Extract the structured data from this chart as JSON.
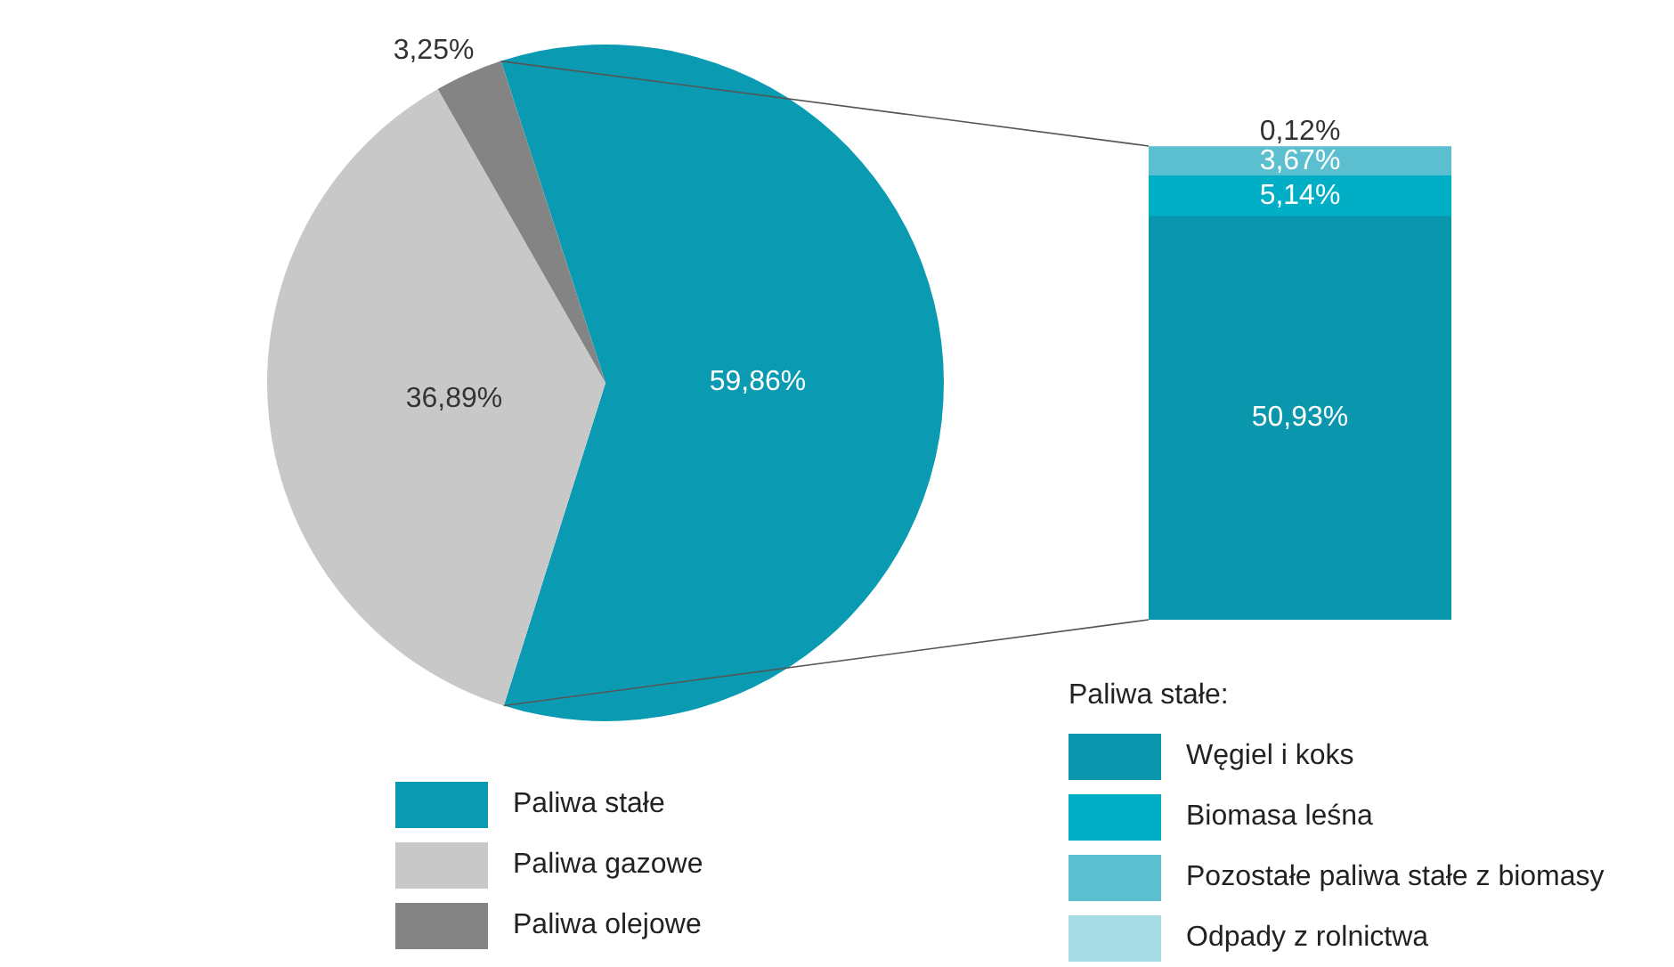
{
  "chart_data": [
    {
      "type": "pie",
      "categories": [
        "Paliwa stałe",
        "Paliwa gazowe",
        "Paliwa olejowe"
      ],
      "values": [
        59.86,
        36.89,
        3.25
      ],
      "colors": [
        "#0a9bb3",
        "#c8c8c8",
        "#848484"
      ],
      "value_labels": [
        "59,86%",
        "36,89%",
        "3,25%"
      ],
      "legend": "bottom"
    },
    {
      "type": "bar",
      "stacked": true,
      "categories": [
        null
      ],
      "legend_title": "Paliwa stałe:",
      "legend": "bottom",
      "tick_labels": false,
      "series": [
        {
          "name": "Węgiel i koks",
          "color": "#0a96ad",
          "values": [
            50.93
          ],
          "value_labels": [
            "50,93%"
          ]
        },
        {
          "name": "Biomasa leśna",
          "color": "#00aec6",
          "values": [
            5.14
          ],
          "value_labels": [
            "5,14%"
          ]
        },
        {
          "name": "Pozostałe paliwa stałe z biomasy",
          "color": "#5cbfd0",
          "values": [
            3.67
          ],
          "value_labels": [
            "3,67%"
          ]
        },
        {
          "name": "Odpady z rolnictwa",
          "color": "#a7dce4",
          "values": [
            0.12
          ],
          "value_labels": [
            "0,12%"
          ]
        }
      ]
    }
  ]
}
